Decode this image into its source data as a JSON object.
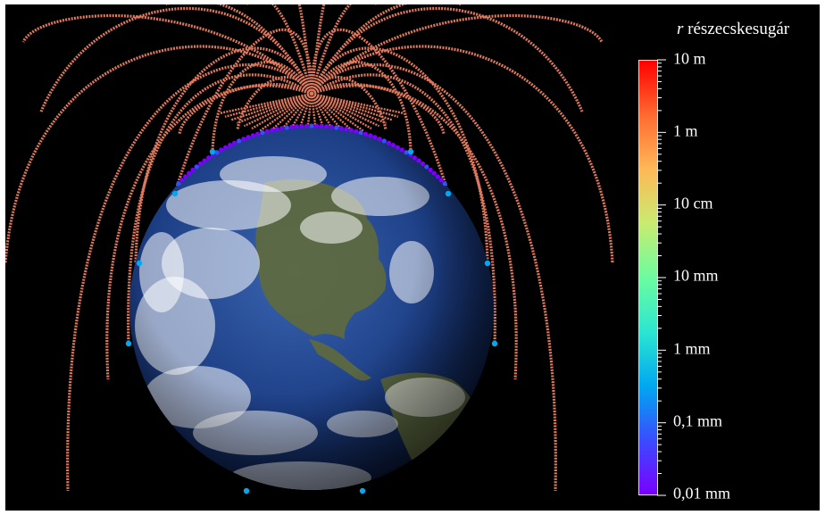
{
  "colorbar": {
    "variable": "r",
    "title": "részecskesugár",
    "labels": [
      "10 m",
      "1 m",
      "10 cm",
      "10 mm",
      "1 mm",
      "0,1 mm",
      "0,01 mm"
    ],
    "scale": "log",
    "colormap": [
      "#7a00ff",
      "#3a4cff",
      "#00a8f0",
      "#2ce6d0",
      "#6cfca0",
      "#c8ec70",
      "#ffb858",
      "#ff6a30",
      "#ff0000"
    ]
  },
  "colors": {
    "background": "#000000",
    "field_lines": "#e0795c",
    "earth_ocean": "#1d3f86",
    "earth_cloud": "#ffffff",
    "earth_land": "#5f6a3c"
  }
}
